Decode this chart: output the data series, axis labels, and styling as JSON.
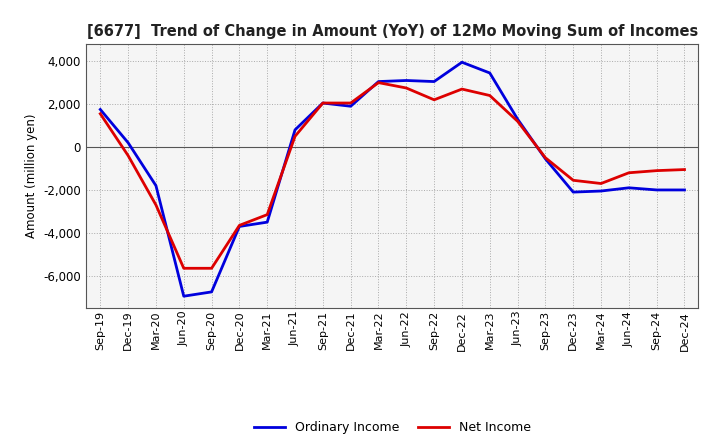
{
  "title": "[6677]  Trend of Change in Amount (YoY) of 12Mo Moving Sum of Incomes",
  "ylabel": "Amount (million yen)",
  "background_color": "#ffffff",
  "plot_bg_color": "#f5f5f5",
  "grid_color": "#aaaaaa",
  "ordinary_income_color": "#0000dd",
  "net_income_color": "#dd0000",
  "line_width": 2.0,
  "x_labels": [
    "Sep-19",
    "Dec-19",
    "Mar-20",
    "Jun-20",
    "Sep-20",
    "Dec-20",
    "Mar-21",
    "Jun-21",
    "Sep-21",
    "Dec-21",
    "Mar-22",
    "Jun-22",
    "Sep-22",
    "Dec-22",
    "Mar-23",
    "Jun-23",
    "Sep-23",
    "Dec-23",
    "Mar-24",
    "Jun-24",
    "Sep-24",
    "Dec-24"
  ],
  "ordinary_income": [
    1750,
    200,
    -1800,
    -6950,
    -6750,
    -3700,
    -3500,
    800,
    2050,
    1900,
    3050,
    3100,
    3050,
    3950,
    3450,
    1300,
    -550,
    -2100,
    -2050,
    -1900,
    -2000,
    -2000
  ],
  "net_income": [
    1550,
    -400,
    -2700,
    -5650,
    -5650,
    -3650,
    -3150,
    500,
    2050,
    2050,
    3000,
    2750,
    2200,
    2700,
    2400,
    1200,
    -500,
    -1550,
    -1700,
    -1200,
    -1100,
    -1050
  ],
  "ylim": [
    -7500,
    4800
  ],
  "yticks": [
    -6000,
    -4000,
    -2000,
    0,
    2000,
    4000
  ],
  "legend_labels": [
    "Ordinary Income",
    "Net Income"
  ]
}
